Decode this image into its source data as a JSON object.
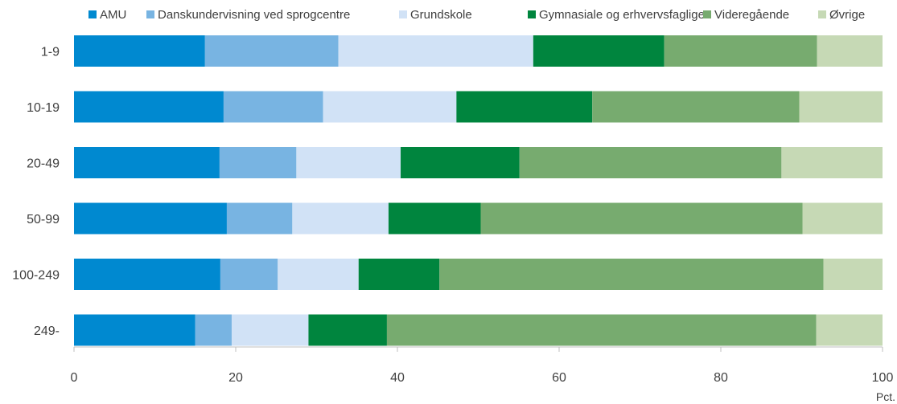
{
  "chart_data": {
    "type": "bar",
    "orientation": "horizontal",
    "stacked": true,
    "unit_label": "Pct.",
    "categories": [
      "1-9",
      "10-19",
      "20-49",
      "50-99",
      "100-249",
      "249-"
    ],
    "xlim": [
      0,
      100
    ],
    "xticks": [
      "0",
      "20",
      "40",
      "60",
      "80",
      "100"
    ],
    "grid": false,
    "legend_position": "top",
    "series": [
      {
        "name": "AMU",
        "color": "#0089d0",
        "values": [
          16.2,
          18.5,
          18.0,
          18.9,
          18.1,
          15.0
        ]
      },
      {
        "name": "Danskundervisning ved sprogcentre",
        "color": "#78b4e2",
        "values": [
          16.5,
          12.3,
          9.5,
          8.1,
          7.1,
          4.5
        ]
      },
      {
        "name": "Grundskole",
        "color": "#d1e2f6",
        "values": [
          24.1,
          16.5,
          12.9,
          11.9,
          10.0,
          9.5
        ]
      },
      {
        "name": "Gymnasiale og erhvervsfaglige",
        "color": "#00853e",
        "values": [
          16.2,
          16.8,
          14.7,
          11.4,
          10.0,
          9.7
        ]
      },
      {
        "name": "Videregående",
        "color": "#77ab6f",
        "values": [
          18.9,
          25.6,
          32.4,
          39.8,
          47.5,
          53.1
        ]
      },
      {
        "name": "Øvrige",
        "color": "#c6d9b5",
        "values": [
          8.1,
          10.3,
          12.5,
          9.9,
          7.3,
          8.2
        ]
      }
    ]
  }
}
